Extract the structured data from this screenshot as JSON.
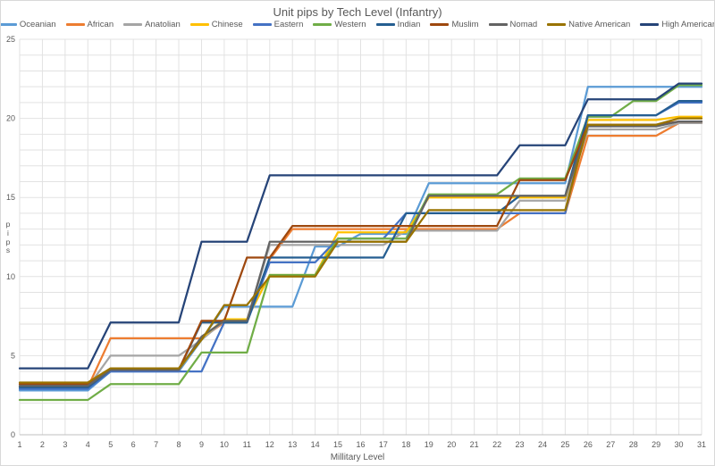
{
  "title": "Unit pips by Tech Level (Infantry)",
  "x_axis": {
    "title": "Millitary Level",
    "ticks": [
      1,
      2,
      3,
      4,
      5,
      6,
      7,
      8,
      9,
      10,
      11,
      12,
      13,
      14,
      15,
      16,
      17,
      18,
      19,
      20,
      21,
      22,
      23,
      24,
      25,
      26,
      27,
      28,
      29,
      30,
      31
    ]
  },
  "y_axis": {
    "title": "pips",
    "ticks": [
      0,
      5,
      10,
      15,
      20,
      25
    ],
    "min": 0,
    "max": 25
  },
  "grid": {
    "color": "#e2e2e2",
    "axis_color": "#bfbfbf",
    "minor_every": 1,
    "labeled_every_y": 5
  },
  "chart_data": {
    "type": "line",
    "title": "Unit pips by Tech Level (Infantry)",
    "xlabel": "Millitary Level",
    "ylabel": "pips",
    "x": [
      1,
      2,
      3,
      4,
      5,
      6,
      7,
      8,
      9,
      10,
      11,
      12,
      13,
      14,
      15,
      16,
      17,
      18,
      19,
      20,
      21,
      22,
      23,
      24,
      25,
      26,
      27,
      28,
      29,
      30,
      31
    ],
    "ylim": [
      0,
      25
    ],
    "grid": "on",
    "legend_position": "top",
    "series": [
      {
        "name": "Oceanian",
        "color": "#5B9BD5",
        "values": [
          2.8,
          2.8,
          2.8,
          2.8,
          4.0,
          4.0,
          4.0,
          4.0,
          6.0,
          8.1,
          8.1,
          8.1,
          8.1,
          11.9,
          11.9,
          12.7,
          12.7,
          12.7,
          15.9,
          15.9,
          15.9,
          15.9,
          15.9,
          15.9,
          15.9,
          22.0,
          22.0,
          22.0,
          22.0,
          22.0,
          22.0
        ]
      },
      {
        "name": "African",
        "color": "#ED7D31",
        "values": [
          3.0,
          3.0,
          3.0,
          3.0,
          6.1,
          6.1,
          6.1,
          6.1,
          6.1,
          7.1,
          7.1,
          11.1,
          13.0,
          13.0,
          13.0,
          13.0,
          13.0,
          13.0,
          13.0,
          13.0,
          13.0,
          13.0,
          14.0,
          14.0,
          14.0,
          18.9,
          18.9,
          18.9,
          18.9,
          19.7,
          19.7
        ]
      },
      {
        "name": "Anatolian",
        "color": "#A5A5A5",
        "values": [
          3.0,
          3.0,
          3.0,
          3.0,
          5.0,
          5.0,
          5.0,
          5.0,
          6.0,
          7.2,
          7.2,
          12.0,
          12.0,
          12.0,
          12.0,
          12.0,
          12.0,
          12.9,
          12.9,
          12.9,
          12.9,
          12.9,
          14.8,
          14.8,
          14.8,
          19.3,
          19.3,
          19.3,
          19.3,
          19.7,
          19.7
        ]
      },
      {
        "name": "Chinese",
        "color": "#FFC000",
        "values": [
          3.0,
          3.0,
          3.0,
          3.0,
          4.1,
          4.1,
          4.1,
          4.1,
          6.1,
          7.3,
          7.3,
          10.1,
          10.1,
          10.1,
          12.8,
          12.8,
          12.8,
          12.8,
          15.0,
          15.0,
          15.0,
          15.0,
          15.0,
          15.0,
          15.0,
          19.9,
          19.9,
          19.9,
          19.9,
          20.1,
          20.1
        ]
      },
      {
        "name": "Eastern",
        "color": "#4472C4",
        "values": [
          2.9,
          2.9,
          2.9,
          2.9,
          4.0,
          4.0,
          4.0,
          4.0,
          4.0,
          7.1,
          7.1,
          10.9,
          10.9,
          10.9,
          12.4,
          12.4,
          12.4,
          14.0,
          14.0,
          14.0,
          14.0,
          14.0,
          14.0,
          14.0,
          14.0,
          20.2,
          20.2,
          20.2,
          20.2,
          21.0,
          21.0
        ]
      },
      {
        "name": "Western",
        "color": "#70AD47",
        "values": [
          2.2,
          2.2,
          2.2,
          2.2,
          3.2,
          3.2,
          3.2,
          3.2,
          5.2,
          5.2,
          5.2,
          10.1,
          10.1,
          10.1,
          12.4,
          12.4,
          12.4,
          12.4,
          15.2,
          15.2,
          15.2,
          15.2,
          16.2,
          16.2,
          16.2,
          20.1,
          20.1,
          21.1,
          21.1,
          22.1,
          22.1
        ]
      },
      {
        "name": "Indian",
        "color": "#255E91",
        "values": [
          3.0,
          3.0,
          3.0,
          3.0,
          4.1,
          4.1,
          4.1,
          4.1,
          7.1,
          7.1,
          7.1,
          11.2,
          11.2,
          11.2,
          11.2,
          11.2,
          11.2,
          14.0,
          14.0,
          14.0,
          14.0,
          14.0,
          15.1,
          15.1,
          15.1,
          20.2,
          20.2,
          20.2,
          20.2,
          21.1,
          21.1
        ]
      },
      {
        "name": "Muslim",
        "color": "#9E480E",
        "values": [
          3.2,
          3.2,
          3.2,
          3.2,
          4.1,
          4.1,
          4.1,
          4.1,
          7.2,
          7.2,
          11.2,
          11.2,
          13.2,
          13.2,
          13.2,
          13.2,
          13.2,
          13.2,
          13.2,
          13.2,
          13.2,
          13.2,
          16.1,
          16.1,
          16.1,
          19.6,
          19.6,
          19.6,
          19.6,
          19.8,
          19.8
        ]
      },
      {
        "name": "Nomad",
        "color": "#636363",
        "values": [
          3.1,
          3.1,
          3.1,
          3.1,
          4.1,
          4.1,
          4.1,
          4.1,
          6.2,
          7.2,
          7.2,
          12.2,
          12.2,
          12.2,
          12.2,
          12.2,
          12.2,
          12.2,
          15.1,
          15.1,
          15.1,
          15.1,
          15.1,
          15.1,
          15.1,
          19.5,
          19.5,
          19.5,
          19.5,
          19.8,
          19.8
        ]
      },
      {
        "name": "Native American",
        "color": "#997300",
        "values": [
          3.3,
          3.3,
          3.3,
          3.3,
          4.2,
          4.2,
          4.2,
          4.2,
          6.0,
          8.2,
          8.2,
          10.0,
          10.0,
          10.0,
          12.2,
          12.2,
          12.2,
          12.2,
          14.2,
          14.2,
          14.2,
          14.2,
          14.2,
          14.2,
          14.2,
          19.6,
          19.6,
          19.6,
          19.6,
          20.0,
          20.0
        ]
      },
      {
        "name": "High American",
        "color": "#264478",
        "values": [
          4.2,
          4.2,
          4.2,
          4.2,
          7.1,
          7.1,
          7.1,
          7.1,
          12.2,
          12.2,
          12.2,
          16.4,
          16.4,
          16.4,
          16.4,
          16.4,
          16.4,
          16.4,
          16.4,
          16.4,
          16.4,
          16.4,
          18.3,
          18.3,
          18.3,
          21.2,
          21.2,
          21.2,
          21.2,
          22.2,
          22.2
        ]
      }
    ]
  }
}
